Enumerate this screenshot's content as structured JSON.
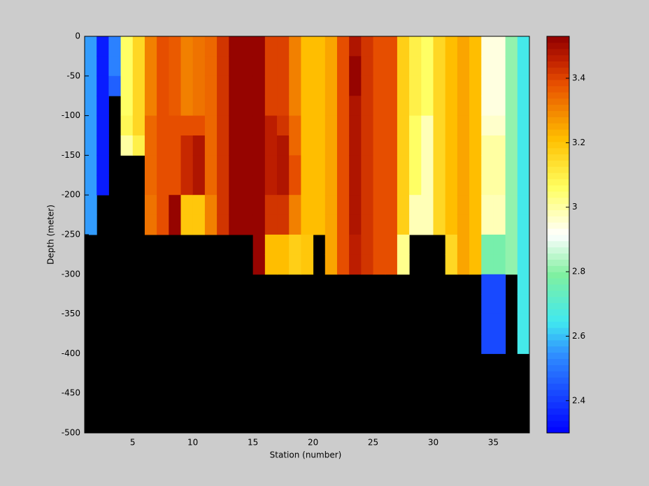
{
  "chart_data": {
    "type": "heatmap",
    "xlabel": "Station (number)",
    "ylabel": "Depth (meter)",
    "xlim": [
      1,
      38
    ],
    "ylim": [
      -500,
      0
    ],
    "xticks": [
      5,
      10,
      15,
      20,
      25,
      30,
      35
    ],
    "yticks": [
      0,
      -50,
      -100,
      -150,
      -200,
      -250,
      -300,
      -350,
      -400,
      -450,
      -500
    ],
    "background": "#000000",
    "clim": [
      2.3,
      3.53
    ],
    "cticks": [
      2.4,
      2.6,
      2.8,
      3,
      3.2,
      3.4
    ],
    "color_levels": 64,
    "colorscale": [
      [
        0,
        "#0000ff"
      ],
      [
        0.2,
        "#3090ff"
      ],
      [
        0.28,
        "#40e8f0"
      ],
      [
        0.4,
        "#80f0a0"
      ],
      [
        0.5,
        "#ffffff"
      ],
      [
        0.62,
        "#ffff60"
      ],
      [
        0.74,
        "#ffc000"
      ],
      [
        0.88,
        "#e85000"
      ],
      [
        0.94,
        "#c02000"
      ],
      [
        1,
        "#900000"
      ]
    ],
    "x": [
      1,
      2,
      3,
      4,
      5,
      6,
      7,
      8,
      9,
      10,
      11,
      12,
      13,
      14,
      15,
      16,
      17,
      18,
      19,
      20,
      21,
      22,
      23,
      24,
      25,
      26,
      27,
      28,
      29,
      30,
      31,
      32,
      33,
      34,
      35,
      36,
      37
    ],
    "y": [
      0,
      -25,
      -50,
      -75,
      -100,
      -125,
      -150,
      -175,
      -200,
      -225,
      -250,
      -275,
      -300,
      -325,
      -350,
      -375,
      -400,
      -425,
      -450,
      -475
    ],
    "z": [
      [
        2.55,
        2.55,
        2.55,
        2.55,
        2.55,
        2.55,
        2.55,
        2.55,
        2.55,
        2.55,
        null,
        null,
        null,
        null,
        null,
        null,
        null,
        null,
        null,
        null
      ],
      [
        2.35,
        2.35,
        2.35,
        2.35,
        2.35,
        2.35,
        2.35,
        2.35,
        null,
        null,
        null,
        null,
        null,
        null,
        null,
        null,
        null,
        null,
        null,
        null
      ],
      [
        2.52,
        2.52,
        2.47,
        null,
        null,
        null,
        null,
        null,
        null,
        null,
        null,
        null,
        null,
        null,
        null,
        null,
        null,
        null,
        null,
        null
      ],
      [
        3.05,
        3.05,
        3.05,
        3.05,
        3.08,
        3.0,
        null,
        null,
        null,
        null,
        null,
        null,
        null,
        null,
        null,
        null,
        null,
        null,
        null,
        null
      ],
      [
        3.15,
        3.15,
        3.15,
        3.15,
        3.15,
        3.1,
        null,
        null,
        null,
        null,
        null,
        null,
        null,
        null,
        null,
        null,
        null,
        null,
        null,
        null
      ],
      [
        3.3,
        3.3,
        3.3,
        3.3,
        3.35,
        3.35,
        3.35,
        3.35,
        3.33,
        3.33,
        null,
        null,
        null,
        null,
        null,
        null,
        null,
        null,
        null,
        null
      ],
      [
        3.38,
        3.38,
        3.38,
        3.38,
        3.38,
        3.38,
        3.38,
        3.38,
        3.38,
        3.38,
        null,
        null,
        null,
        null,
        null,
        null,
        null,
        null,
        null,
        null
      ],
      [
        3.36,
        3.36,
        3.36,
        3.36,
        3.38,
        3.38,
        3.38,
        3.38,
        3.52,
        3.52,
        null,
        null,
        null,
        null,
        null,
        null,
        null,
        null,
        null,
        null
      ],
      [
        3.3,
        3.3,
        3.3,
        3.3,
        3.38,
        3.45,
        3.45,
        3.45,
        3.2,
        3.2,
        null,
        null,
        null,
        null,
        null,
        null,
        null,
        null,
        null,
        null
      ],
      [
        3.33,
        3.33,
        3.33,
        3.33,
        3.38,
        3.48,
        3.48,
        3.48,
        3.2,
        3.2,
        null,
        null,
        null,
        null,
        null,
        null,
        null,
        null,
        null,
        null
      ],
      [
        3.35,
        3.35,
        3.35,
        3.35,
        3.35,
        3.35,
        3.35,
        3.35,
        3.3,
        3.3,
        null,
        null,
        null,
        null,
        null,
        null,
        null,
        null,
        null,
        null
      ],
      [
        3.42,
        3.42,
        3.42,
        3.42,
        3.42,
        3.42,
        3.42,
        3.42,
        3.42,
        3.42,
        null,
        null,
        null,
        null,
        null,
        null,
        null,
        null,
        null,
        null
      ],
      [
        3.52,
        3.52,
        3.52,
        3.52,
        3.52,
        3.52,
        3.52,
        3.52,
        3.52,
        3.52,
        null,
        null,
        null,
        null,
        null,
        null,
        null,
        null,
        null,
        null
      ],
      [
        3.52,
        3.52,
        3.52,
        3.52,
        3.52,
        3.52,
        3.52,
        3.52,
        3.52,
        3.52,
        null,
        null,
        null,
        null,
        null,
        null,
        null,
        null,
        null,
        null
      ],
      [
        3.52,
        3.52,
        3.52,
        3.52,
        3.52,
        3.52,
        3.52,
        3.52,
        3.52,
        3.52,
        3.52,
        3.52,
        null,
        null,
        null,
        null,
        null,
        null,
        null,
        null
      ],
      [
        3.4,
        3.4,
        3.4,
        3.4,
        3.46,
        3.46,
        3.46,
        3.46,
        3.42,
        3.42,
        3.22,
        3.22,
        null,
        null,
        null,
        null,
        null,
        null,
        null,
        null
      ],
      [
        3.4,
        3.4,
        3.4,
        3.4,
        3.42,
        3.48,
        3.48,
        3.48,
        3.42,
        3.42,
        3.22,
        3.22,
        null,
        null,
        null,
        null,
        null,
        null,
        null,
        null
      ],
      [
        3.3,
        3.3,
        3.3,
        3.3,
        3.35,
        3.35,
        3.38,
        3.38,
        3.3,
        3.3,
        3.18,
        3.18,
        null,
        null,
        null,
        null,
        null,
        null,
        null,
        null
      ],
      [
        3.22,
        3.22,
        3.22,
        3.22,
        3.22,
        3.22,
        3.22,
        3.22,
        3.22,
        3.22,
        3.2,
        3.2,
        null,
        null,
        null,
        null,
        null,
        null,
        null,
        null
      ],
      [
        3.22,
        3.22,
        3.22,
        3.22,
        3.22,
        3.22,
        3.22,
        3.22,
        3.22,
        3.22,
        null,
        null,
        null,
        null,
        null,
        null,
        null,
        null,
        null,
        null
      ],
      [
        3.25,
        3.25,
        3.25,
        3.25,
        3.25,
        3.25,
        3.25,
        3.25,
        3.25,
        3.25,
        3.25,
        3.25,
        null,
        null,
        null,
        null,
        null,
        null,
        null,
        null
      ],
      [
        3.38,
        3.38,
        3.38,
        3.38,
        3.38,
        3.38,
        3.38,
        3.38,
        3.38,
        3.38,
        3.38,
        3.38,
        null,
        null,
        null,
        null,
        null,
        null,
        null,
        null
      ],
      [
        3.48,
        3.52,
        3.52,
        3.48,
        3.48,
        3.48,
        3.48,
        3.48,
        3.48,
        3.48,
        3.46,
        3.46,
        null,
        null,
        null,
        null,
        null,
        null,
        null,
        null
      ],
      [
        3.42,
        3.42,
        3.42,
        3.42,
        3.42,
        3.42,
        3.42,
        3.42,
        3.42,
        3.42,
        3.42,
        3.42,
        null,
        null,
        null,
        null,
        null,
        null,
        null,
        null
      ],
      [
        3.38,
        3.38,
        3.38,
        3.38,
        3.38,
        3.38,
        3.38,
        3.38,
        3.38,
        3.38,
        3.38,
        3.38,
        null,
        null,
        null,
        null,
        null,
        null,
        null,
        null
      ],
      [
        3.38,
        3.38,
        3.38,
        3.38,
        3.38,
        3.38,
        3.38,
        3.38,
        3.38,
        3.38,
        3.38,
        3.38,
        null,
        null,
        null,
        null,
        null,
        null,
        null,
        null
      ],
      [
        3.18,
        3.18,
        3.18,
        3.18,
        3.18,
        3.18,
        3.18,
        3.18,
        3.18,
        3.18,
        3.02,
        3.02,
        null,
        null,
        null,
        null,
        null,
        null,
        null,
        null
      ],
      [
        3.1,
        3.1,
        3.1,
        3.1,
        3.05,
        3.05,
        3.05,
        3.05,
        2.98,
        2.98,
        null,
        null,
        null,
        null,
        null,
        null,
        null,
        null,
        null,
        null
      ],
      [
        3.05,
        3.05,
        3.05,
        3.05,
        2.98,
        2.98,
        2.98,
        2.98,
        2.98,
        2.98,
        null,
        null,
        null,
        null,
        null,
        null,
        null,
        null,
        null,
        null
      ],
      [
        3.15,
        3.15,
        3.15,
        3.15,
        3.15,
        3.15,
        3.15,
        3.15,
        3.15,
        3.15,
        null,
        null,
        null,
        null,
        null,
        null,
        null,
        null,
        null,
        null
      ],
      [
        3.22,
        3.22,
        3.22,
        3.22,
        3.22,
        3.22,
        3.22,
        3.22,
        3.22,
        3.22,
        3.15,
        3.15,
        null,
        null,
        null,
        null,
        null,
        null,
        null,
        null
      ],
      [
        3.25,
        3.25,
        3.25,
        3.25,
        3.25,
        3.25,
        3.25,
        3.25,
        3.25,
        3.25,
        3.25,
        3.25,
        null,
        null,
        null,
        null,
        null,
        null,
        null,
        null
      ],
      [
        3.22,
        3.22,
        3.22,
        3.22,
        3.22,
        3.22,
        3.22,
        3.22,
        3.22,
        3.22,
        3.22,
        3.22,
        null,
        null,
        null,
        null,
        null,
        null,
        null,
        null
      ],
      [
        2.95,
        2.95,
        2.95,
        2.95,
        2.97,
        3.0,
        3.0,
        3.0,
        2.99,
        2.99,
        2.78,
        2.78,
        2.42,
        2.42,
        2.42,
        2.42,
        null,
        null,
        null,
        null
      ],
      [
        2.95,
        2.95,
        2.95,
        2.95,
        2.97,
        3.0,
        3.0,
        3.0,
        2.99,
        2.99,
        2.78,
        2.78,
        2.42,
        2.42,
        2.42,
        2.42,
        null,
        null,
        null,
        null
      ],
      [
        2.8,
        2.8,
        2.8,
        2.8,
        2.8,
        2.8,
        2.8,
        2.8,
        2.8,
        2.8,
        2.8,
        2.8,
        null,
        null,
        null,
        null,
        null,
        null,
        null,
        null
      ],
      [
        2.65,
        2.65,
        2.65,
        2.65,
        2.65,
        2.65,
        2.65,
        2.65,
        2.65,
        2.65,
        2.65,
        2.65,
        2.65,
        2.65,
        2.65,
        2.65,
        null,
        null,
        null,
        null
      ]
    ]
  }
}
